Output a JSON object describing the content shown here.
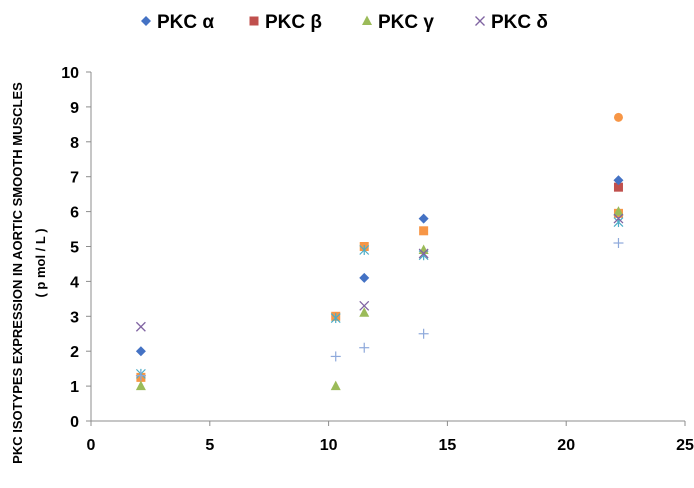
{
  "chart_data": {
    "type": "scatter",
    "title": "",
    "xlabel": "",
    "ylabel_line1": "PKC  ISOTYPES  EXPRESSION  IN AORTIC SMOOTH MUSCLES",
    "ylabel_line2": "( p mol / L )",
    "xlim": [
      0,
      25
    ],
    "ylim": [
      0,
      10
    ],
    "x_ticks": [
      "0",
      "5",
      "10",
      "15",
      "20",
      "25"
    ],
    "y_ticks": [
      "0",
      "1",
      "2",
      "3",
      "4",
      "5",
      "6",
      "7",
      "8",
      "9",
      "10"
    ],
    "grid": false,
    "legend_position": "top",
    "series": [
      {
        "name": "PKC α",
        "marker": "diamond",
        "color": "#4472C4",
        "points": [
          [
            2.1,
            2.0
          ],
          [
            11.5,
            4.1
          ],
          [
            14.0,
            5.8
          ],
          [
            22.2,
            6.9
          ]
        ]
      },
      {
        "name": "PKC β",
        "marker": "square",
        "color": "#C0504D",
        "points": [
          [
            22.2,
            6.7
          ]
        ]
      },
      {
        "name": "PKC γ",
        "marker": "triangle",
        "color": "#9BBB59",
        "points": [
          [
            2.1,
            1.0
          ],
          [
            10.3,
            1.0
          ],
          [
            11.5,
            3.1
          ],
          [
            14.0,
            4.9
          ],
          [
            22.2,
            6.0
          ]
        ]
      },
      {
        "name": "PKC δ",
        "marker": "x",
        "color": "#8064A2",
        "points": [
          [
            2.1,
            2.7
          ],
          [
            11.5,
            3.3
          ],
          [
            14.0,
            4.8
          ],
          [
            22.2,
            5.8
          ]
        ]
      },
      {
        "name": "",
        "marker": "square",
        "color": "#F79646",
        "points": [
          [
            2.1,
            1.25
          ],
          [
            10.3,
            3.0
          ],
          [
            11.5,
            5.0
          ],
          [
            14.0,
            5.45
          ],
          [
            22.2,
            5.95
          ]
        ]
      },
      {
        "name": "",
        "marker": "circle",
        "color": "#F79646",
        "points": [
          [
            22.2,
            8.7
          ]
        ]
      },
      {
        "name": "",
        "marker": "star",
        "color": "#4BACC6",
        "points": [
          [
            2.1,
            1.35
          ],
          [
            10.3,
            2.95
          ],
          [
            11.5,
            4.9
          ],
          [
            14.0,
            4.75
          ],
          [
            22.2,
            5.7
          ]
        ]
      },
      {
        "name": "",
        "marker": "plus",
        "color": "#8EA9DB",
        "points": [
          [
            2.1,
            1.3
          ],
          [
            10.3,
            1.85
          ],
          [
            11.5,
            2.1
          ],
          [
            14.0,
            2.5
          ],
          [
            22.2,
            5.1
          ]
        ]
      }
    ]
  }
}
